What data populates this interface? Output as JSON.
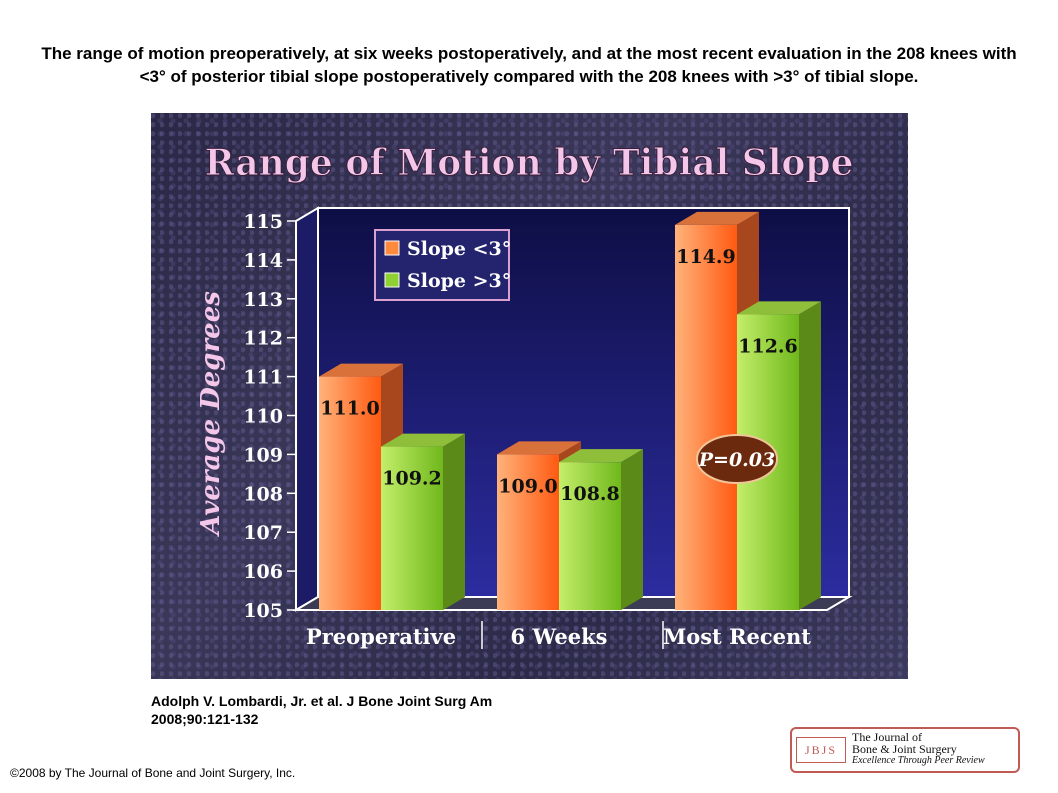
{
  "caption": "The range of motion preoperatively, at six weeks postoperatively, and at the most recent evaluation in the 208 knees with <3° of posterior tibial slope postoperatively compared with the 208 knees with >3° of tibial slope.",
  "citation": {
    "line1": "Adolph V. Lombardi, Jr. et al. J Bone Joint Surg Am",
    "line2": "2008;90:121-132"
  },
  "copyright": "©2008 by The Journal of Bone and Joint Surgery, Inc.",
  "logo": {
    "mark": "JBJS",
    "line1": "The Journal of",
    "line2": "Bone & Joint Surgery",
    "line3": "Excellence Through Peer Review"
  },
  "colors": {
    "series1": "#ff8a3d",
    "series2": "#8fd132",
    "plot_back": "#23237a",
    "title": "#f3c6ea",
    "axis_text": "#ffffff"
  },
  "chart_data": {
    "type": "bar",
    "title": "Range of Motion by Tibial Slope",
    "ylabel": "Average Degrees",
    "xlabel": "",
    "ylim": [
      105,
      115
    ],
    "yticks": [
      "105",
      "106",
      "107",
      "108",
      "109",
      "110",
      "111",
      "112",
      "113",
      "114",
      "115"
    ],
    "categories": [
      "Preoperative",
      "6 Weeks",
      "Most Recent"
    ],
    "series": [
      {
        "name": "Slope <3°",
        "values": [
          111.0,
          109.0,
          114.9
        ],
        "labels": [
          "111.0",
          "109.0",
          "114.9"
        ]
      },
      {
        "name": "Slope >3°",
        "values": [
          109.2,
          108.8,
          112.6
        ],
        "labels": [
          "109.2",
          "108.8",
          "112.6"
        ]
      }
    ],
    "legend_position": "top-left",
    "annotation": "P=0.03",
    "grid": false
  }
}
